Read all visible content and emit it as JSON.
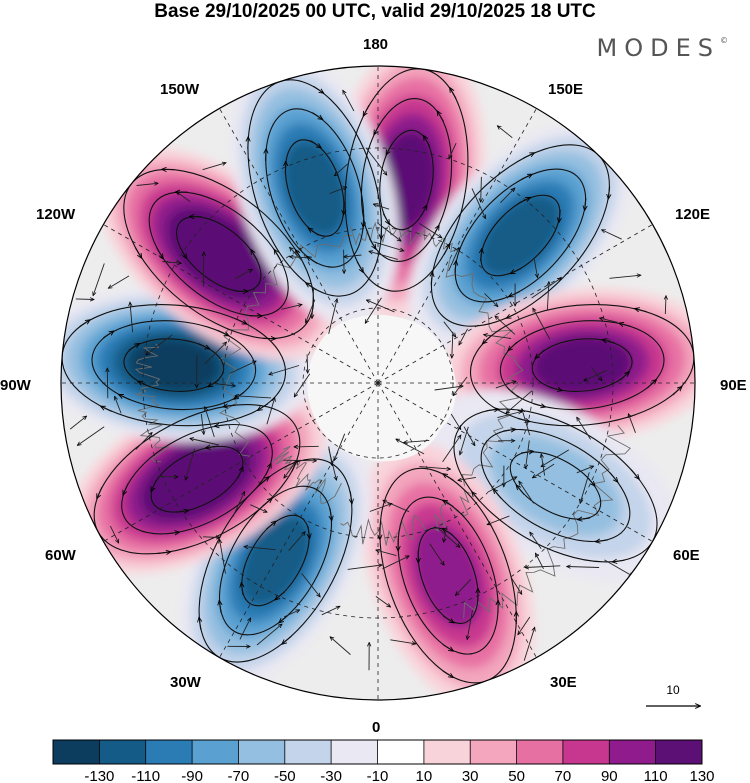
{
  "header": {
    "title": "Base 29/10/2025 00 UTC, valid 29/10/2025 18 UTC",
    "brand": "MODES",
    "brand_mark": "©"
  },
  "map": {
    "projection": "north-polar-stereographic",
    "longitude_labels": {
      "top": "180",
      "top_left": "150W",
      "top_right": "150E",
      "upper_left": "120W",
      "upper_right": "120E",
      "left": "90W",
      "right": "90E",
      "lower_left": "60W",
      "lower_right": "60E",
      "bottom_left": "30W",
      "bottom_right": "30E",
      "bottom": "0"
    },
    "vector_reference": {
      "value": "10"
    },
    "anomaly_centers": [
      {
        "longitude_deg": 172,
        "value": 125
      },
      {
        "longitude_deg": 136,
        "value": -115
      },
      {
        "longitude_deg": 95,
        "value": 110
      },
      {
        "longitude_deg": 60,
        "value": -60
      },
      {
        "longitude_deg": 20,
        "value": 100
      },
      {
        "longitude_deg": -30,
        "value": -115
      },
      {
        "longitude_deg": -62,
        "value": 130
      },
      {
        "longitude_deg": -95,
        "value": -130
      },
      {
        "longitude_deg": -129,
        "value": 135
      },
      {
        "longitude_deg": -162,
        "value": -125
      }
    ]
  },
  "colorbar": {
    "tick_labels": [
      "-130",
      "-110",
      "-90",
      "-70",
      "-50",
      "-30",
      "-10",
      "10",
      "30",
      "50",
      "70",
      "90",
      "110",
      "130"
    ],
    "colors": [
      "#0c3c5e",
      "#145b87",
      "#2b7bb5",
      "#5aa1d2",
      "#94bfe0",
      "#c4d4ea",
      "#e9e8f3",
      "#ffffff",
      "#f9d3da",
      "#f3a6bd",
      "#e770a3",
      "#c8378f",
      "#8f1b8c",
      "#5c1075"
    ]
  }
}
